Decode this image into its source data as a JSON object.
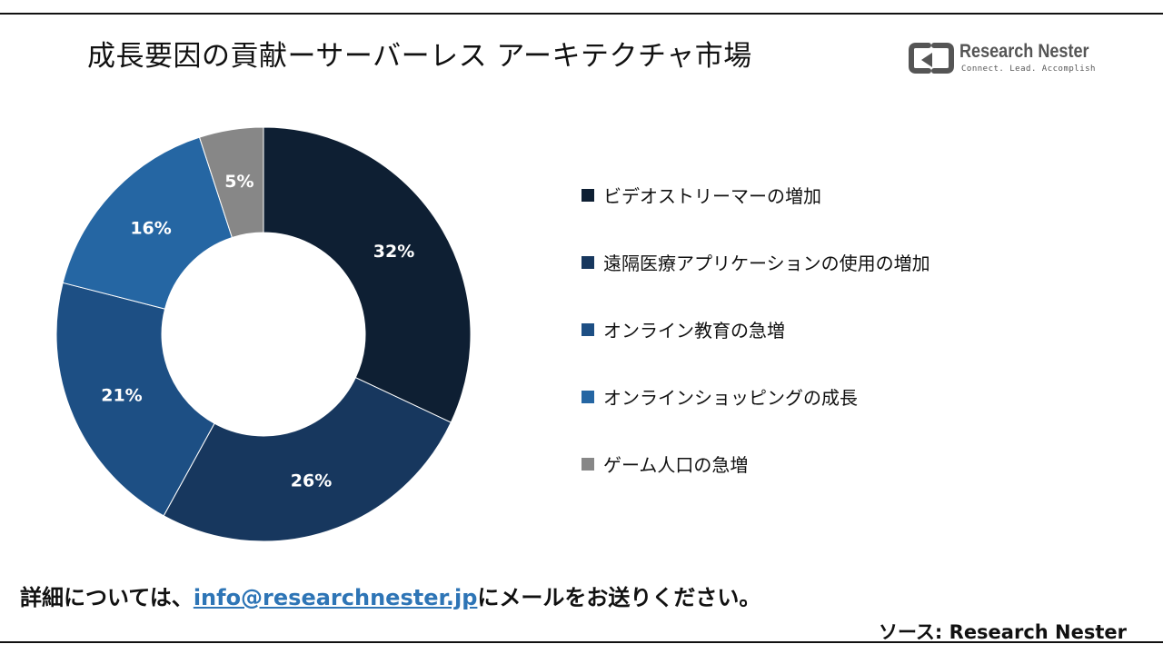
{
  "title": "成長要因の貢献ーサーバーレス アーキテクチャ市場",
  "brand": {
    "name": "Research Nester",
    "tagline": "Connect. Lead. Accomplish"
  },
  "chart_data": {
    "type": "pie",
    "variant": "donut",
    "unit": "%",
    "categories": [
      "ビデオストリーマーの増加",
      "遠隔医療アプリケーションの使用の増加",
      "オンライン教育の急増",
      "オンラインショッピングの成長",
      "ゲーム人口の急増"
    ],
    "values": [
      32,
      26,
      21,
      16,
      5
    ],
    "data_labels": [
      "32%",
      "26%",
      "21%",
      "16%",
      "5%"
    ],
    "colors": [
      "#0e1f33",
      "#17375e",
      "#1d4f84",
      "#2566a3",
      "#878787"
    ],
    "legend_position": "right"
  },
  "contact": {
    "prefix": "詳細については、",
    "email": "info@researchnester.jp",
    "suffix": "にメールをお送りください。"
  },
  "source": "ソース: Research Nester"
}
